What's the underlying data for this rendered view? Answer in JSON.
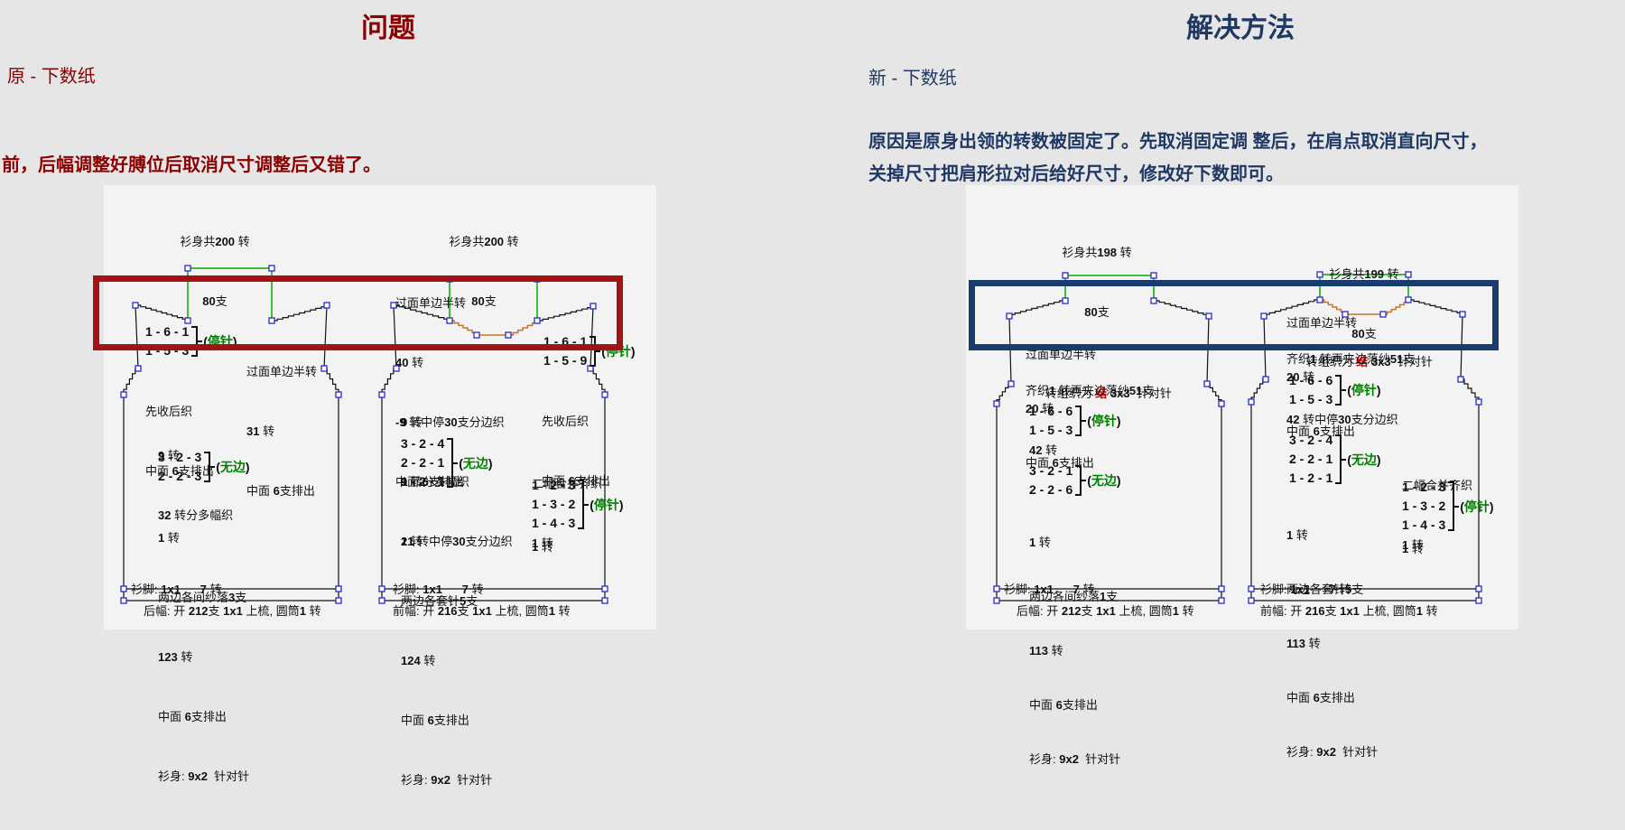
{
  "colors": {
    "problem_accent": "#8B0000",
    "solution_accent": "#1F3864",
    "highlight_red": "#A21414",
    "highlight_navy": "#173C6D",
    "neck_line_green": "#00B000",
    "tag_text_green": "#008000",
    "neck_curve_orange": "#C4762B",
    "handle_blue": "#2929CC"
  },
  "problem": {
    "title": "问题",
    "sheet_label": "原 - 下数纸",
    "description": "前，后幅调整好膊位后取消尺寸调整后又错了。"
  },
  "solution": {
    "title": "解决方法",
    "sheet_label": "新 - 下数纸",
    "description_line1": "原因是原身出领的转数被固定了。先取消固定调 整后，在肩点取消直向尺寸，",
    "description_line2": "关掉尺寸把肩形拉对后给好尺寸，修改好下数即可。"
  },
  "old_back": {
    "total": "衫身共200 转",
    "needles": "80支",
    "shoulder_group": {
      "line1": "1 - 6 - 1",
      "line2": "1 - 5 - 3",
      "tag": "停针"
    },
    "shoulder_notes": [
      "先收后织",
      "中面 6支排出"
    ],
    "mid_notes": [
      "过面单边半转",
      "31 转",
      "中面 6支排出"
    ],
    "body_top": [
      "9 转",
      "32 转分多幅织"
    ],
    "waist_group": {
      "line1": "3 - 2 - 3",
      "line2": "2 - 2 - 3",
      "tag": "无边"
    },
    "body_bottom": [
      "1 转",
      "两边各间纱落3支",
      "123 转",
      "中面 6支排出",
      "衫身: 9x2  针对针"
    ],
    "hem": "衫脚: 1x1      7 转",
    "cast_on": "后幅: 开 212支 1x1 上梳, 圆筒1 转"
  },
  "old_front": {
    "total": "衫身共200 转",
    "needles": "80支",
    "neck_notes": [
      "过面单边半转",
      "40 转",
      "-9 转中停30支分边织",
      "中面 6支排出"
    ],
    "shoulder_group": {
      "line1": "1 - 6 - 1",
      "line2": "1 - 5 - 9",
      "tag": "停针"
    },
    "shoulder_notes": [
      "先收后织",
      "中面 6支排出"
    ],
    "body_top": [
      "9 转",
      "9 转分多幅织",
      "21 转中停30支分边织"
    ],
    "waist_group": {
      "line1": "3 - 2 - 4",
      "line2": "2 - 2 - 1",
      "line3": "1 - 2 - 1",
      "tag": "无边"
    },
    "body_bottom": [
      "1 转",
      "两边各套针5支",
      "124 转",
      "中面 6支排出",
      "衫身: 9x2  针对针"
    ],
    "merge_notes": [
      "二幅合并齐织",
      "1 转"
    ],
    "merge_group": {
      "line1": "1 - 2 - 3",
      "line2": "1 - 3 - 2",
      "line3": "1 - 4 - 3",
      "tag": "停针"
    },
    "merge_after": "1 转",
    "hem": "衫脚: 1x1      7 转",
    "cast_on": "前幅: 开 216支 1x1 上梳, 圆筒1 转"
  },
  "new_back": {
    "total": "衫身共198 转",
    "needles": "80支",
    "neck_notes": [
      "过面单边半转",
      "20 转",
      "中面 6支排出"
    ],
    "knot_line": {
      "prefix": "转组织为 ",
      "red": "结",
      "suffix": " 3x3  针对针"
    },
    "even_line": "齐织1 转再夹边落纱51支",
    "shoulder_group": {
      "line1": "1 - 6 - 6",
      "line2": "1 - 5 - 3",
      "tag": "停针"
    },
    "mid_line": "42 转",
    "waist_group": {
      "line1": "3 - 2 - 1",
      "line2": "2 - 2 - 6",
      "tag": "无边"
    },
    "body_bottom": [
      "1 转",
      "两边各间纱落1支",
      "113 转",
      "中面 6支排出",
      "衫身: 9x2  针对针"
    ],
    "hem": "衫脚: 1x1      7 转",
    "cast_on": "后幅: 开 212支 1x1 上梳, 圆筒1 转"
  },
  "new_front": {
    "total": "衫身共199 转",
    "needles": "80支",
    "neck_notes": [
      "过面单边半转",
      "20 转",
      "中面 6支排出"
    ],
    "knot_line": {
      "prefix": "转组织为 ",
      "red": "结",
      "suffix": " 3x3  针对针"
    },
    "even_line": "齐织1 转再夹边落纱51支",
    "shoulder_group": {
      "line1": "1 - 6 - 6",
      "line2": "1 - 5 - 3",
      "tag": "停针"
    },
    "mid_line": "42 转中停30支分边织",
    "waist_group": {
      "line1": "3 - 2 - 4",
      "line2": "2 - 2 - 1",
      "line3": "1 - 2 - 1",
      "tag": "无边"
    },
    "body_bottom": [
      "1 转",
      "两边各套针5支",
      "113 转",
      "中面 6支排出",
      "衫身: 9x2  针对针"
    ],
    "merge_notes": [
      "二幅合并齐织",
      "1 转"
    ],
    "merge_group": {
      "line1": "1 - 2 - 3",
      "line2": "1 - 3 - 2",
      "line3": "1 - 4 - 3",
      "tag": "停针"
    },
    "merge_after": "1 转",
    "hem": "衫脚: 1x1      7 转",
    "cast_on": "前幅: 开 216支 1x1 上梳, 圆筒1 转"
  }
}
